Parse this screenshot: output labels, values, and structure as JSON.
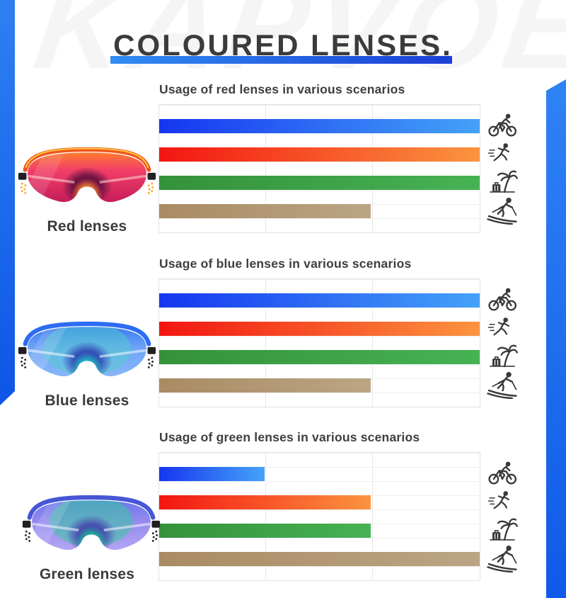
{
  "watermark": {
    "text": "KAPVOE",
    "color": "#f5f5f6"
  },
  "title": {
    "text": "COLOURED LENSES.",
    "color": "#3b3b3d",
    "underline_from": "#318cf3",
    "underline_to": "#1c3fd6"
  },
  "decor": {
    "left_band_from": "#2e80f2",
    "left_band_to": "#0d55e6",
    "right_band_from": "#2e83f4",
    "right_band_to": "#0f5ae8"
  },
  "scenarios": [
    {
      "label": "Cycling",
      "icon": "cyclist-icon",
      "bar_from": "#1636f0",
      "bar_to": "#45a2f9"
    },
    {
      "label": "Running",
      "icon": "runner-icon",
      "bar_from": "#f31511",
      "bar_to": "#fb943f"
    },
    {
      "label": "Beach vacation",
      "icon": "palm-tree-icon",
      "bar_from": "#34923a",
      "bar_to": "#47b254"
    },
    {
      "label": "Skiing",
      "icon": "skier-icon",
      "bar_from": "#a98b63",
      "bar_to": "#bba584"
    }
  ],
  "sections": [
    {
      "heading": "Usage of red lenses in various scenarios",
      "caption": "Red lenses",
      "values_percent": [
        100,
        100,
        100,
        66
      ]
    },
    {
      "heading": "Usage of blue lenses in various scenarios",
      "caption": "Blue lenses",
      "values_percent": [
        100,
        100,
        100,
        66
      ]
    },
    {
      "heading": "Usage of green lenses in various scenarios",
      "caption": "Green lenses",
      "values_percent": [
        33,
        66,
        66,
        100
      ]
    }
  ],
  "chart_data": [
    {
      "type": "bar",
      "orientation": "horizontal",
      "title": "Usage of red lenses in various scenarios",
      "categories": [
        "Cycling",
        "Running",
        "Beach vacation",
        "Skiing"
      ],
      "values": [
        100,
        100,
        100,
        66
      ],
      "xlim": [
        0,
        100
      ],
      "grid": true,
      "category_labels_rendered_as": "icons right of plot"
    },
    {
      "type": "bar",
      "orientation": "horizontal",
      "title": "Usage of blue lenses in various scenarios",
      "categories": [
        "Cycling",
        "Running",
        "Beach vacation",
        "Skiing"
      ],
      "values": [
        100,
        100,
        100,
        66
      ],
      "xlim": [
        0,
        100
      ],
      "grid": true,
      "category_labels_rendered_as": "icons right of plot"
    },
    {
      "type": "bar",
      "orientation": "horizontal",
      "title": "Usage of green lenses in various scenarios",
      "categories": [
        "Cycling",
        "Running",
        "Beach vacation",
        "Skiing"
      ],
      "values": [
        33,
        66,
        66,
        100
      ],
      "xlim": [
        0,
        100
      ],
      "grid": true,
      "category_labels_rendered_as": "icons right of plot"
    }
  ]
}
